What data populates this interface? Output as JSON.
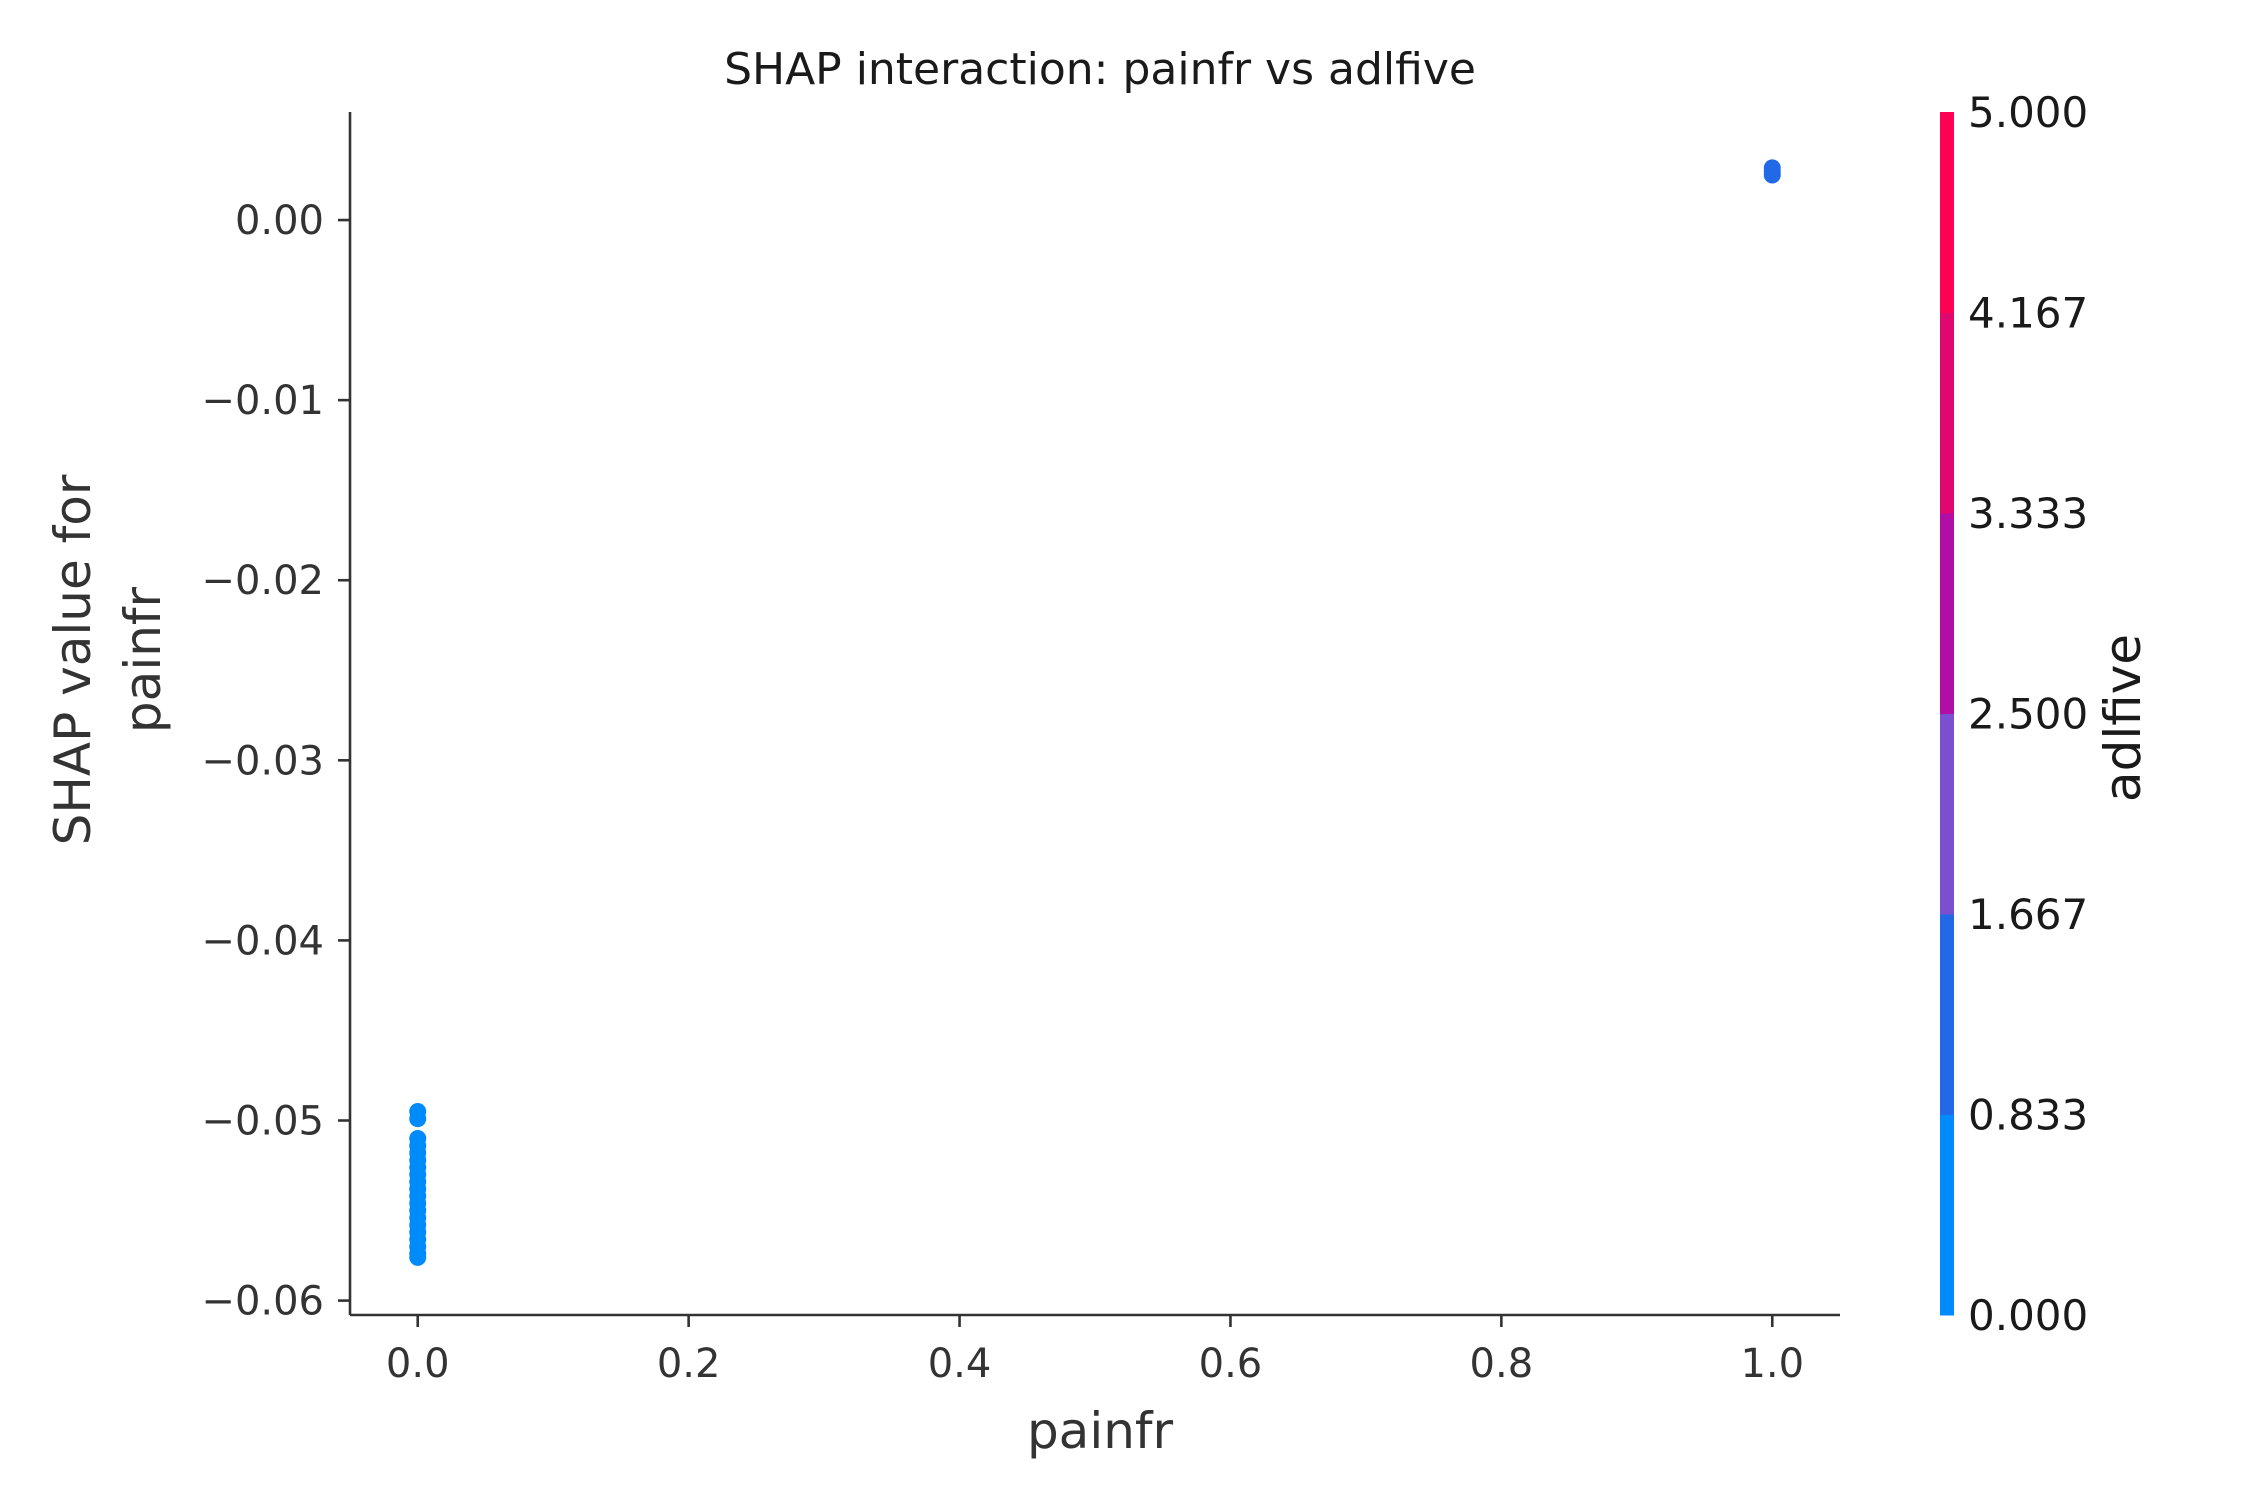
{
  "chart_data": {
    "type": "scatter",
    "title": "SHAP interaction: painfr vs adlfive",
    "xlabel": "painfr",
    "ylabel_lines": [
      "SHAP value for",
      "painfr"
    ],
    "xlim": [
      -0.05,
      1.05
    ],
    "ylim": [
      -0.0608,
      0.006
    ],
    "x_ticks": [
      0.0,
      0.2,
      0.4,
      0.6,
      0.8,
      1.0
    ],
    "x_tick_labels": [
      "0.0",
      "0.2",
      "0.4",
      "0.6",
      "0.8",
      "1.0"
    ],
    "y_ticks": [
      0.0,
      -0.01,
      -0.02,
      -0.03,
      -0.04,
      -0.05,
      -0.06
    ],
    "y_tick_labels": [
      "0.00",
      "−0.01",
      "−0.02",
      "−0.03",
      "−0.04",
      "−0.05",
      "−0.06"
    ],
    "points": [
      {
        "x": 0.0,
        "y": -0.0495,
        "color_value": 0.3
      },
      {
        "x": 0.0,
        "y": -0.0499,
        "color_value": 0.3
      },
      {
        "x": 0.0,
        "y": -0.051,
        "color_value": 0.3
      },
      {
        "x": 0.0,
        "y": -0.0514,
        "color_value": 0.3
      },
      {
        "x": 0.0,
        "y": -0.0518,
        "color_value": 0.3
      },
      {
        "x": 0.0,
        "y": -0.0522,
        "color_value": 0.3
      },
      {
        "x": 0.0,
        "y": -0.0526,
        "color_value": 0.3
      },
      {
        "x": 0.0,
        "y": -0.053,
        "color_value": 0.3
      },
      {
        "x": 0.0,
        "y": -0.0534,
        "color_value": 0.3
      },
      {
        "x": 0.0,
        "y": -0.0538,
        "color_value": 0.3
      },
      {
        "x": 0.0,
        "y": -0.0542,
        "color_value": 0.3
      },
      {
        "x": 0.0,
        "y": -0.0546,
        "color_value": 0.3
      },
      {
        "x": 0.0,
        "y": -0.055,
        "color_value": 0.3
      },
      {
        "x": 0.0,
        "y": -0.0554,
        "color_value": 0.3
      },
      {
        "x": 0.0,
        "y": -0.0558,
        "color_value": 0.3
      },
      {
        "x": 0.0,
        "y": -0.0562,
        "color_value": 0.3
      },
      {
        "x": 0.0,
        "y": -0.0566,
        "color_value": 0.3
      },
      {
        "x": 0.0,
        "y": -0.057,
        "color_value": 0.3
      },
      {
        "x": 0.0,
        "y": -0.0574,
        "color_value": 0.3
      },
      {
        "x": 0.0,
        "y": -0.0576,
        "color_value": 0.3
      },
      {
        "x": 1.0,
        "y": 0.0027,
        "color_value": 1.2
      },
      {
        "x": 1.0,
        "y": 0.0029,
        "color_value": 1.2
      },
      {
        "x": 1.0,
        "y": 0.0025,
        "color_value": 1.2
      }
    ],
    "colorbar": {
      "label": "adlfive",
      "range": [
        0.0,
        5.0
      ],
      "ticks": [
        0.0,
        0.833,
        1.667,
        2.5,
        3.333,
        4.167,
        5.0
      ],
      "tick_labels": [
        "0.000",
        "0.833",
        "1.667",
        "2.500",
        "3.333",
        "4.167",
        "5.000"
      ],
      "band_colors": [
        "#008bfb",
        "#2269e8",
        "#7a4fd0",
        "#b10ea6",
        "#e0076f",
        "#ff0052"
      ]
    },
    "grid": false,
    "legend": "none"
  }
}
